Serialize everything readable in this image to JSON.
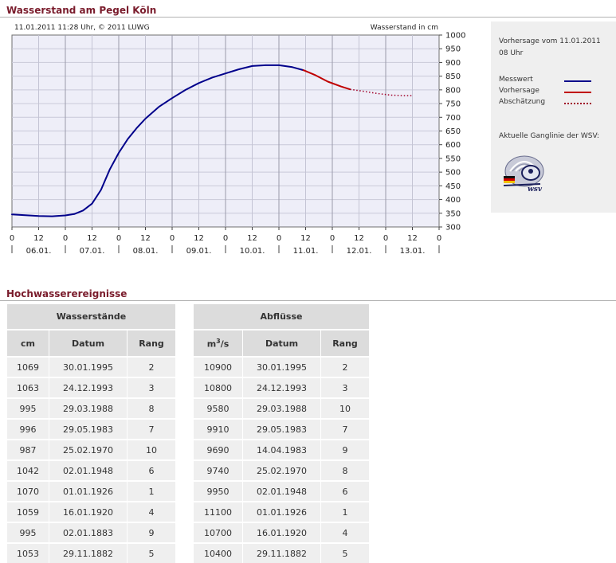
{
  "page": {
    "title": "Wasserstand am Pegel Köln",
    "section2_title": "Hochwasserereignisse"
  },
  "chart_data": {
    "type": "line",
    "meta_left": "11.01.2011 11:28 Uhr, © 2011 LUWG",
    "ylabel": "Wasserstand in cm",
    "ylim": [
      300,
      1000
    ],
    "yticks": [
      300,
      350,
      400,
      450,
      500,
      550,
      600,
      650,
      700,
      750,
      800,
      850,
      900,
      950,
      1000
    ],
    "xlim_hours": [
      0,
      192
    ],
    "x_tick_hours": [
      0,
      12,
      24,
      36,
      48,
      60,
      72,
      84,
      96,
      108,
      120,
      132,
      144,
      156,
      168,
      180,
      192
    ],
    "x_tick_labels": [
      "0",
      "12",
      "0",
      "12",
      "0",
      "12",
      "0",
      "12",
      "0",
      "12",
      "0",
      "12",
      "0",
      "12",
      "0",
      "12",
      "0"
    ],
    "day_labels": [
      "06.01.",
      "07.01.",
      "08.01.",
      "09.01.",
      "10.01.",
      "11.01.",
      "12.01.",
      "13.01."
    ],
    "series": [
      {
        "name": "Messwert",
        "color": "#00008b",
        "style": "solid",
        "points": [
          [
            0,
            346
          ],
          [
            6,
            343
          ],
          [
            12,
            340
          ],
          [
            18,
            339
          ],
          [
            24,
            342
          ],
          [
            28,
            347
          ],
          [
            32,
            360
          ],
          [
            36,
            385
          ],
          [
            40,
            435
          ],
          [
            44,
            510
          ],
          [
            48,
            570
          ],
          [
            52,
            620
          ],
          [
            56,
            660
          ],
          [
            60,
            695
          ],
          [
            66,
            738
          ],
          [
            72,
            770
          ],
          [
            78,
            800
          ],
          [
            84,
            825
          ],
          [
            90,
            845
          ],
          [
            96,
            860
          ],
          [
            102,
            875
          ],
          [
            108,
            887
          ],
          [
            114,
            890
          ],
          [
            120,
            890
          ],
          [
            126,
            883
          ],
          [
            131,
            872
          ]
        ]
      },
      {
        "name": "Vorhersage",
        "color": "#c00000",
        "style": "solid",
        "points": [
          [
            131,
            872
          ],
          [
            136,
            855
          ],
          [
            142,
            830
          ],
          [
            148,
            812
          ],
          [
            152,
            802
          ]
        ]
      },
      {
        "name": "Abschätzung",
        "color": "#a00028",
        "style": "dotted",
        "points": [
          [
            152,
            802
          ],
          [
            158,
            795
          ],
          [
            164,
            787
          ],
          [
            170,
            781
          ],
          [
            176,
            779
          ],
          [
            180,
            779
          ]
        ]
      }
    ]
  },
  "legend": {
    "forecast_label": "Vorhersage vom 11.01.2011",
    "forecast_time": "08 Uhr",
    "items": [
      "Messwert",
      "Vorhersage",
      "Abschätzung"
    ],
    "current_label": "Aktuelle Ganglinie der WSV:",
    "logo_text": "wsv"
  },
  "wasserstaende": {
    "group_header": "Wasserstände",
    "headers": [
      "cm",
      "Datum",
      "Rang"
    ],
    "rows": [
      [
        "1069",
        "30.01.1995",
        "2"
      ],
      [
        "1063",
        "24.12.1993",
        "3"
      ],
      [
        "995",
        "29.03.1988",
        "8"
      ],
      [
        "996",
        "29.05.1983",
        "7"
      ],
      [
        "987",
        "25.02.1970",
        "10"
      ],
      [
        "1042",
        "02.01.1948",
        "6"
      ],
      [
        "1070",
        "01.01.1926",
        "1"
      ],
      [
        "1059",
        "16.01.1920",
        "4"
      ],
      [
        "995",
        "02.01.1883",
        "9"
      ],
      [
        "1053",
        "29.11.1882",
        "5"
      ]
    ]
  },
  "abfluesse": {
    "group_header": "Abflüsse",
    "unit_base": "m",
    "unit_sup": "3",
    "unit_tail": "/s",
    "headers": [
      "Datum",
      "Rang"
    ],
    "rows": [
      [
        "10900",
        "30.01.1995",
        "2"
      ],
      [
        "10800",
        "24.12.1993",
        "3"
      ],
      [
        "9580",
        "29.03.1988",
        "10"
      ],
      [
        "9910",
        "29.05.1983",
        "7"
      ],
      [
        "9690",
        "14.04.1983",
        "9"
      ],
      [
        "9740",
        "25.02.1970",
        "8"
      ],
      [
        "9950",
        "02.01.1948",
        "6"
      ],
      [
        "11100",
        "01.01.1926",
        "1"
      ],
      [
        "10700",
        "16.01.1920",
        "4"
      ],
      [
        "10400",
        "29.11.1882",
        "5"
      ]
    ]
  }
}
